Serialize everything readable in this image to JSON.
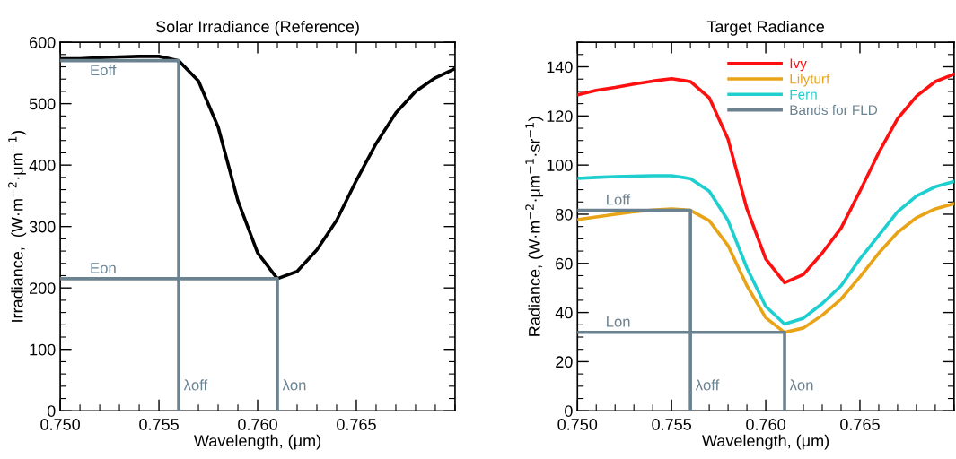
{
  "chart_data": [
    {
      "type": "line",
      "title": "Solar Irradiance (Reference)",
      "xlabel": "Wavelength, (μm)",
      "ylabel": "Irradiance,  (W·m$^{−2}$·μm$^{−1}$)",
      "x": [
        0.75,
        0.751,
        0.752,
        0.753,
        0.754,
        0.755,
        0.756,
        0.757,
        0.758,
        0.759,
        0.76,
        0.761,
        0.762,
        0.763,
        0.764,
        0.765,
        0.766,
        0.767,
        0.768,
        0.769,
        0.77
      ],
      "series": [
        {
          "color": "#000000",
          "values": [
            573,
            573,
            575,
            576,
            577,
            577,
            570,
            537,
            462,
            342,
            257,
            215,
            227,
            262,
            310,
            375,
            435,
            485,
            520,
            542,
            557
          ]
        },
        {
          "color": "#6b8290",
          "x": [
            0.75,
            0.756,
            0.756
          ],
          "values": [
            570,
            570,
            0
          ]
        },
        {
          "color": "#6b8290",
          "x": [
            0.75,
            0.761,
            0.761
          ],
          "values": [
            215,
            215,
            0
          ]
        }
      ],
      "annotations": [
        {
          "text": "Eoff",
          "x": 0.7515,
          "y": 570
        },
        {
          "text": "Eon",
          "x": 0.7515,
          "y": 215
        },
        {
          "text": "λoff",
          "x": 0.756,
          "y": 0
        },
        {
          "text": "λon",
          "x": 0.761,
          "y": 0
        }
      ],
      "xlim": [
        0.75,
        0.77
      ],
      "xticks": [
        {
          "value": 0.75,
          "label": "0.750"
        },
        {
          "value": 0.755,
          "label": "0.755"
        },
        {
          "value": 0.76,
          "label": "0.760"
        },
        {
          "value": 0.765,
          "label": "0.765"
        }
      ],
      "ylim": [
        0,
        600
      ],
      "yticks": [
        0,
        100,
        200,
        300,
        400,
        500,
        600
      ],
      "grid": false,
      "legend": false
    },
    {
      "type": "line",
      "title": "Target Radiance",
      "xlabel": "Wavelength, (μm)",
      "ylabel": "Radiance, (W·m$^{−2}$·μm$^{−1}$·sr$^{−1}$)",
      "x": [
        0.75,
        0.751,
        0.752,
        0.753,
        0.754,
        0.755,
        0.756,
        0.757,
        0.758,
        0.759,
        0.76,
        0.761,
        0.762,
        0.763,
        0.764,
        0.765,
        0.766,
        0.767,
        0.768,
        0.769,
        0.77
      ],
      "series": [
        {
          "name": "Ivy",
          "color": "#ff1010",
          "values": [
            128.6,
            130.4,
            131.6,
            133,
            134.2,
            135.2,
            134,
            127.4,
            110.5,
            82.2,
            61.8,
            52.1,
            55.5,
            64.2,
            74.4,
            89.4,
            105.1,
            118.9,
            128,
            134,
            137
          ]
        },
        {
          "name": "Lilyturf",
          "color": "#e8a317",
          "values": [
            77.8,
            78.9,
            80,
            81,
            81.7,
            82.2,
            81.6,
            77.4,
            67.2,
            50.9,
            37.9,
            31.9,
            33.7,
            38.9,
            45.5,
            54.5,
            64.2,
            72.6,
            78.6,
            82.2,
            84.3
          ]
        },
        {
          "name": "Fern",
          "color": "#1fcfcf",
          "values": [
            94.6,
            95,
            95.3,
            95.5,
            95.7,
            95.7,
            94.5,
            89.4,
            77.4,
            58.1,
            42.5,
            35.3,
            37.7,
            43.7,
            50.9,
            61.8,
            71.4,
            81,
            87.4,
            91.2,
            93.3
          ]
        },
        {
          "name": "Bands for FLD",
          "color": "#6b8290",
          "x": [
            0.75,
            0.756,
            0.756
          ],
          "values": [
            81.6,
            81.6,
            0
          ]
        },
        {
          "color": "#6b8290",
          "x": [
            0.75,
            0.761,
            0.761
          ],
          "values": [
            31.9,
            31.9,
            0
          ]
        }
      ],
      "annotations": [
        {
          "text": "Loff",
          "x": 0.7515,
          "y": 81.6
        },
        {
          "text": "Lon",
          "x": 0.7515,
          "y": 31.9
        },
        {
          "text": "λoff",
          "x": 0.756,
          "y": 0
        },
        {
          "text": "λon",
          "x": 0.761,
          "y": 0
        }
      ],
      "xlim": [
        0.75,
        0.77
      ],
      "xticks": [
        {
          "value": 0.75,
          "label": "0.750"
        },
        {
          "value": 0.755,
          "label": "0.755"
        },
        {
          "value": 0.76,
          "label": "0.760"
        },
        {
          "value": 0.765,
          "label": "0.765"
        }
      ],
      "ylim": [
        0,
        150
      ],
      "yticks": [
        0,
        20,
        40,
        60,
        80,
        100,
        120,
        140
      ],
      "grid": false,
      "legend": "top right"
    }
  ]
}
